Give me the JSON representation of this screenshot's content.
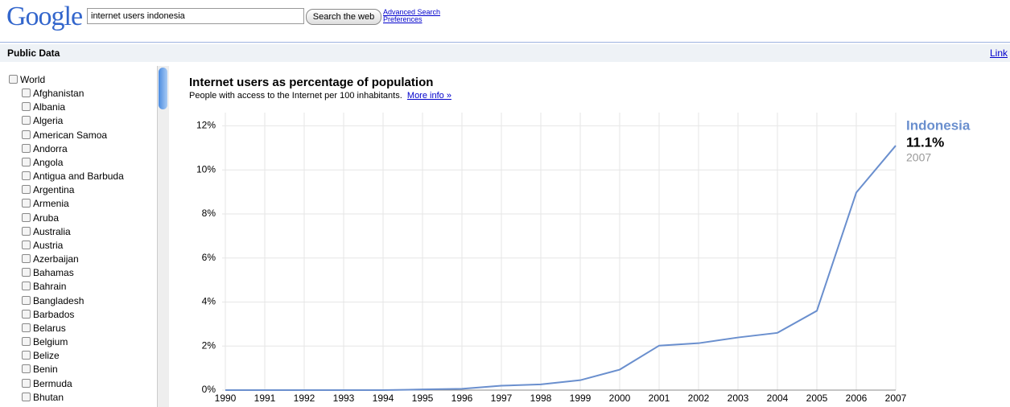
{
  "header": {
    "logo": "Google",
    "query": "internet users indonesia",
    "search_button": "Search the web",
    "links": [
      "Advanced Search",
      "Preferences"
    ]
  },
  "bar": {
    "title": "Public Data",
    "link": "Link"
  },
  "sidebar": {
    "root": "World",
    "items": [
      "Afghanistan",
      "Albania",
      "Algeria",
      "American Samoa",
      "Andorra",
      "Angola",
      "Antigua and Barbuda",
      "Argentina",
      "Armenia",
      "Aruba",
      "Australia",
      "Austria",
      "Azerbaijan",
      "Bahamas",
      "Bahrain",
      "Bangladesh",
      "Barbados",
      "Belarus",
      "Belgium",
      "Belize",
      "Benin",
      "Bermuda",
      "Bhutan"
    ]
  },
  "chart_data": {
    "type": "line",
    "title": "Internet users as percentage of population",
    "subtitle": "People with access to the Internet per 100 inhabitants.",
    "more_link": "More info »",
    "x": [
      1990,
      1991,
      1992,
      1993,
      1994,
      1995,
      1996,
      1997,
      1998,
      1999,
      2000,
      2001,
      2002,
      2003,
      2004,
      2005,
      2006,
      2007
    ],
    "series": [
      {
        "name": "Indonesia",
        "color": "#6a8fce",
        "values": [
          0,
          0,
          0,
          0,
          0.001,
          0.03,
          0.06,
          0.2,
          0.26,
          0.45,
          0.93,
          2.02,
          2.13,
          2.39,
          2.6,
          3.6,
          8.97,
          11.1
        ],
        "value_labels": [
          null,
          null,
          null,
          null,
          null,
          null,
          null,
          null,
          null,
          null,
          null,
          null,
          null,
          null,
          null,
          null,
          null,
          "11.1%"
        ]
      }
    ],
    "xlim": [
      1990,
      2007
    ],
    "xticks": [
      1990,
      1991,
      1992,
      1993,
      1994,
      1995,
      1996,
      1997,
      1998,
      1999,
      2000,
      2001,
      2002,
      2003,
      2004,
      2005,
      2006,
      2007
    ],
    "ylim": [
      0,
      12.6
    ],
    "yticks": [
      {
        "value": 0,
        "label": "0%"
      },
      {
        "value": 2,
        "label": "2%"
      },
      {
        "value": 4,
        "label": "4%"
      },
      {
        "value": 6,
        "label": "6%"
      },
      {
        "value": 8,
        "label": "8%"
      },
      {
        "value": 10,
        "label": "10%"
      },
      {
        "value": 12,
        "label": "12%"
      }
    ],
    "grid": true
  }
}
